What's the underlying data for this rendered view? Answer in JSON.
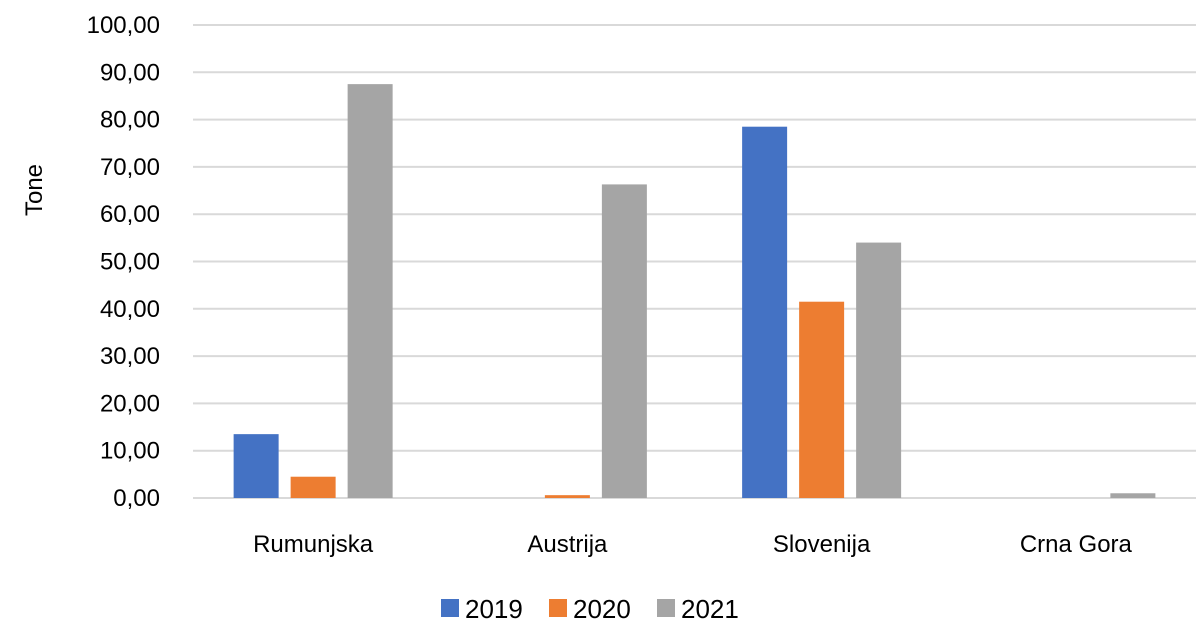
{
  "chart_data": {
    "type": "bar",
    "title": "",
    "xlabel": "",
    "ylabel": "Tone",
    "ylim": [
      0,
      100
    ],
    "ytick_step": 10,
    "ytick_labels": [
      "0,00",
      "10,00",
      "20,00",
      "30,00",
      "40,00",
      "50,00",
      "60,00",
      "70,00",
      "80,00",
      "90,00",
      "100,00"
    ],
    "grid": true,
    "legend_position": "bottom",
    "categories": [
      "Rumunjska",
      "Austrija",
      "Slovenija",
      "Crna Gora"
    ],
    "series": [
      {
        "name": "2019",
        "color": "#4472C4",
        "values": [
          13.5,
          0,
          78.5,
          0
        ]
      },
      {
        "name": "2020",
        "color": "#ED7D31",
        "values": [
          4.5,
          0.6,
          41.5,
          0
        ]
      },
      {
        "name": "2021",
        "color": "#A5A5A5",
        "values": [
          87.5,
          66.3,
          54.0,
          1.0
        ]
      }
    ]
  }
}
